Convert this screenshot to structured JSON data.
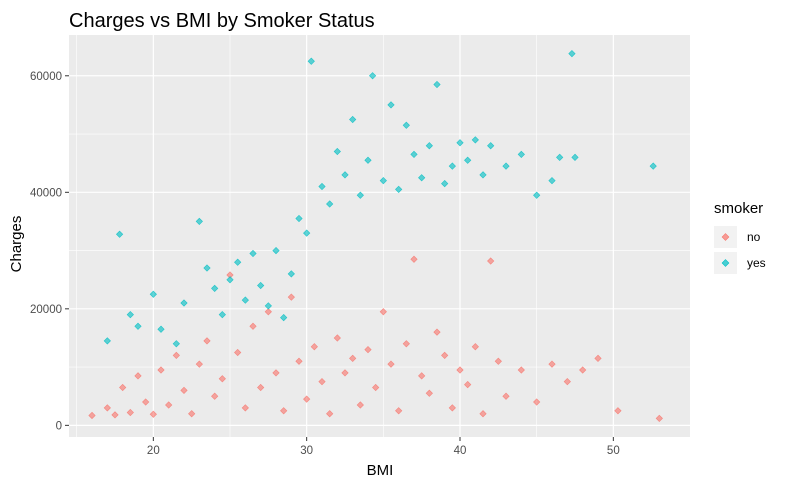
{
  "chart_data": {
    "type": "scatter",
    "title": "Charges vs BMI by Smoker Status",
    "xlabel": "BMI",
    "ylabel": "Charges",
    "xlim": [
      14.5,
      55
    ],
    "ylim": [
      -2000,
      67000
    ],
    "x_ticks": [
      20,
      30,
      40,
      50
    ],
    "y_ticks": [
      0,
      20000,
      40000,
      60000
    ],
    "x_tick_labels": [
      "20",
      "30",
      "40",
      "50"
    ],
    "y_tick_labels": [
      "0",
      "20000",
      "40000",
      "60000"
    ],
    "grid": true,
    "legend": {
      "title": "smoker",
      "position": "right"
    },
    "series": [
      {
        "name": "no",
        "color": "#F8766D",
        "points": [
          [
            16,
            1700
          ],
          [
            17,
            3000
          ],
          [
            17.5,
            1800
          ],
          [
            18,
            6500
          ],
          [
            18.5,
            2200
          ],
          [
            19,
            8500
          ],
          [
            19.5,
            4000
          ],
          [
            20,
            1900
          ],
          [
            20.5,
            9500
          ],
          [
            21,
            3500
          ],
          [
            21.5,
            12000
          ],
          [
            22,
            6000
          ],
          [
            22.5,
            2000
          ],
          [
            23,
            10500
          ],
          [
            23.5,
            14500
          ],
          [
            24,
            5000
          ],
          [
            24.5,
            8000
          ],
          [
            25,
            25800
          ],
          [
            25.5,
            12500
          ],
          [
            26,
            3000
          ],
          [
            26.5,
            17000
          ],
          [
            27,
            6500
          ],
          [
            27.5,
            19500
          ],
          [
            28,
            9000
          ],
          [
            28.5,
            2500
          ],
          [
            29,
            22000
          ],
          [
            29.5,
            11000
          ],
          [
            30,
            4500
          ],
          [
            30.5,
            13500
          ],
          [
            31,
            7500
          ],
          [
            31.5,
            2000
          ],
          [
            32,
            15000
          ],
          [
            32.5,
            9000
          ],
          [
            33,
            11500
          ],
          [
            33.5,
            3500
          ],
          [
            34,
            13000
          ],
          [
            34.5,
            6500
          ],
          [
            35,
            19500
          ],
          [
            35.5,
            10500
          ],
          [
            36,
            2500
          ],
          [
            36.5,
            14000
          ],
          [
            37,
            28500
          ],
          [
            37.5,
            8500
          ],
          [
            38,
            5500
          ],
          [
            38.5,
            16000
          ],
          [
            39,
            12000
          ],
          [
            39.5,
            3000
          ],
          [
            40,
            9500
          ],
          [
            40.5,
            7000
          ],
          [
            41,
            13500
          ],
          [
            41.5,
            2000
          ],
          [
            42,
            28200
          ],
          [
            42.5,
            11000
          ],
          [
            43,
            5000
          ],
          [
            44,
            9500
          ],
          [
            45,
            4000
          ],
          [
            46,
            10500
          ],
          [
            47,
            7500
          ],
          [
            48,
            9500
          ],
          [
            49,
            11500
          ],
          [
            50.3,
            2500
          ],
          [
            53,
            1200
          ]
        ]
      },
      {
        "name": "yes",
        "color": "#00BFC4",
        "points": [
          [
            17,
            14500
          ],
          [
            17.8,
            32800
          ],
          [
            18.5,
            19000
          ],
          [
            19,
            17000
          ],
          [
            20,
            22500
          ],
          [
            20.5,
            16500
          ],
          [
            21.5,
            14000
          ],
          [
            22,
            21000
          ],
          [
            23,
            35000
          ],
          [
            23.5,
            27000
          ],
          [
            24,
            23500
          ],
          [
            24.5,
            19000
          ],
          [
            25,
            25000
          ],
          [
            25.5,
            28000
          ],
          [
            26,
            21500
          ],
          [
            26.5,
            29500
          ],
          [
            27,
            24000
          ],
          [
            27.5,
            20500
          ],
          [
            28,
            30000
          ],
          [
            28.5,
            18500
          ],
          [
            29,
            26000
          ],
          [
            29.5,
            35500
          ],
          [
            30,
            33000
          ],
          [
            30.3,
            62500
          ],
          [
            31,
            41000
          ],
          [
            31.5,
            38000
          ],
          [
            32,
            47000
          ],
          [
            32.5,
            43000
          ],
          [
            33,
            52500
          ],
          [
            33.5,
            39500
          ],
          [
            34,
            45500
          ],
          [
            34.3,
            60000
          ],
          [
            35,
            42000
          ],
          [
            35.5,
            55000
          ],
          [
            36,
            40500
          ],
          [
            36.5,
            51500
          ],
          [
            37,
            46500
          ],
          [
            37.5,
            42500
          ],
          [
            38,
            48000
          ],
          [
            38.5,
            58500
          ],
          [
            39,
            41500
          ],
          [
            39.5,
            44500
          ],
          [
            40,
            48500
          ],
          [
            40.5,
            45500
          ],
          [
            41,
            49000
          ],
          [
            41.5,
            43000
          ],
          [
            42,
            48000
          ],
          [
            43,
            44500
          ],
          [
            44,
            46500
          ],
          [
            45,
            39500
          ],
          [
            46,
            42000
          ],
          [
            46.5,
            46000
          ],
          [
            47.3,
            63800
          ],
          [
            47.5,
            46000
          ],
          [
            52.6,
            44500
          ]
        ]
      }
    ]
  }
}
